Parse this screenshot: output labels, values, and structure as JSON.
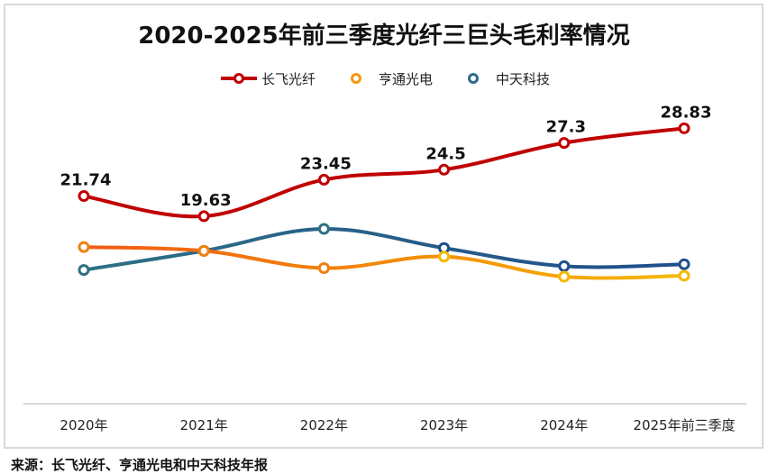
{
  "chart_data": {
    "type": "line",
    "title": "2020-2025年前三季度光纤三巨头毛利率情况",
    "xlabel": "",
    "ylabel": "",
    "categories": [
      "2020年",
      "2021年",
      "2022年",
      "2023年",
      "2024年",
      "2025年前三季度"
    ],
    "ylim": [
      0,
      30
    ],
    "grid": false,
    "legend_position": "top-center",
    "smooth": true,
    "series": [
      {
        "name": "长飞光纤",
        "values": [
          21.74,
          19.63,
          23.45,
          24.5,
          27.3,
          28.83
        ],
        "color": "#C00000",
        "show_labels": true,
        "labels": [
          "21.74",
          "19.63",
          "23.45",
          "24.5",
          "27.3",
          "28.83"
        ]
      },
      {
        "name": "亨通光电",
        "values": [
          16.4,
          16.0,
          14.2,
          15.4,
          13.3,
          13.4
        ],
        "color": "#F08010",
        "color_end": "#F5B800",
        "show_labels": false
      },
      {
        "name": "中天科技",
        "values": [
          14.0,
          16.0,
          18.3,
          16.3,
          14.4,
          14.6
        ],
        "color": "#2E7085",
        "color_end": "#1F4E8C",
        "show_labels": false
      }
    ]
  },
  "source_note": "来源：长飞光纤、亨通光电和中天科技年报"
}
